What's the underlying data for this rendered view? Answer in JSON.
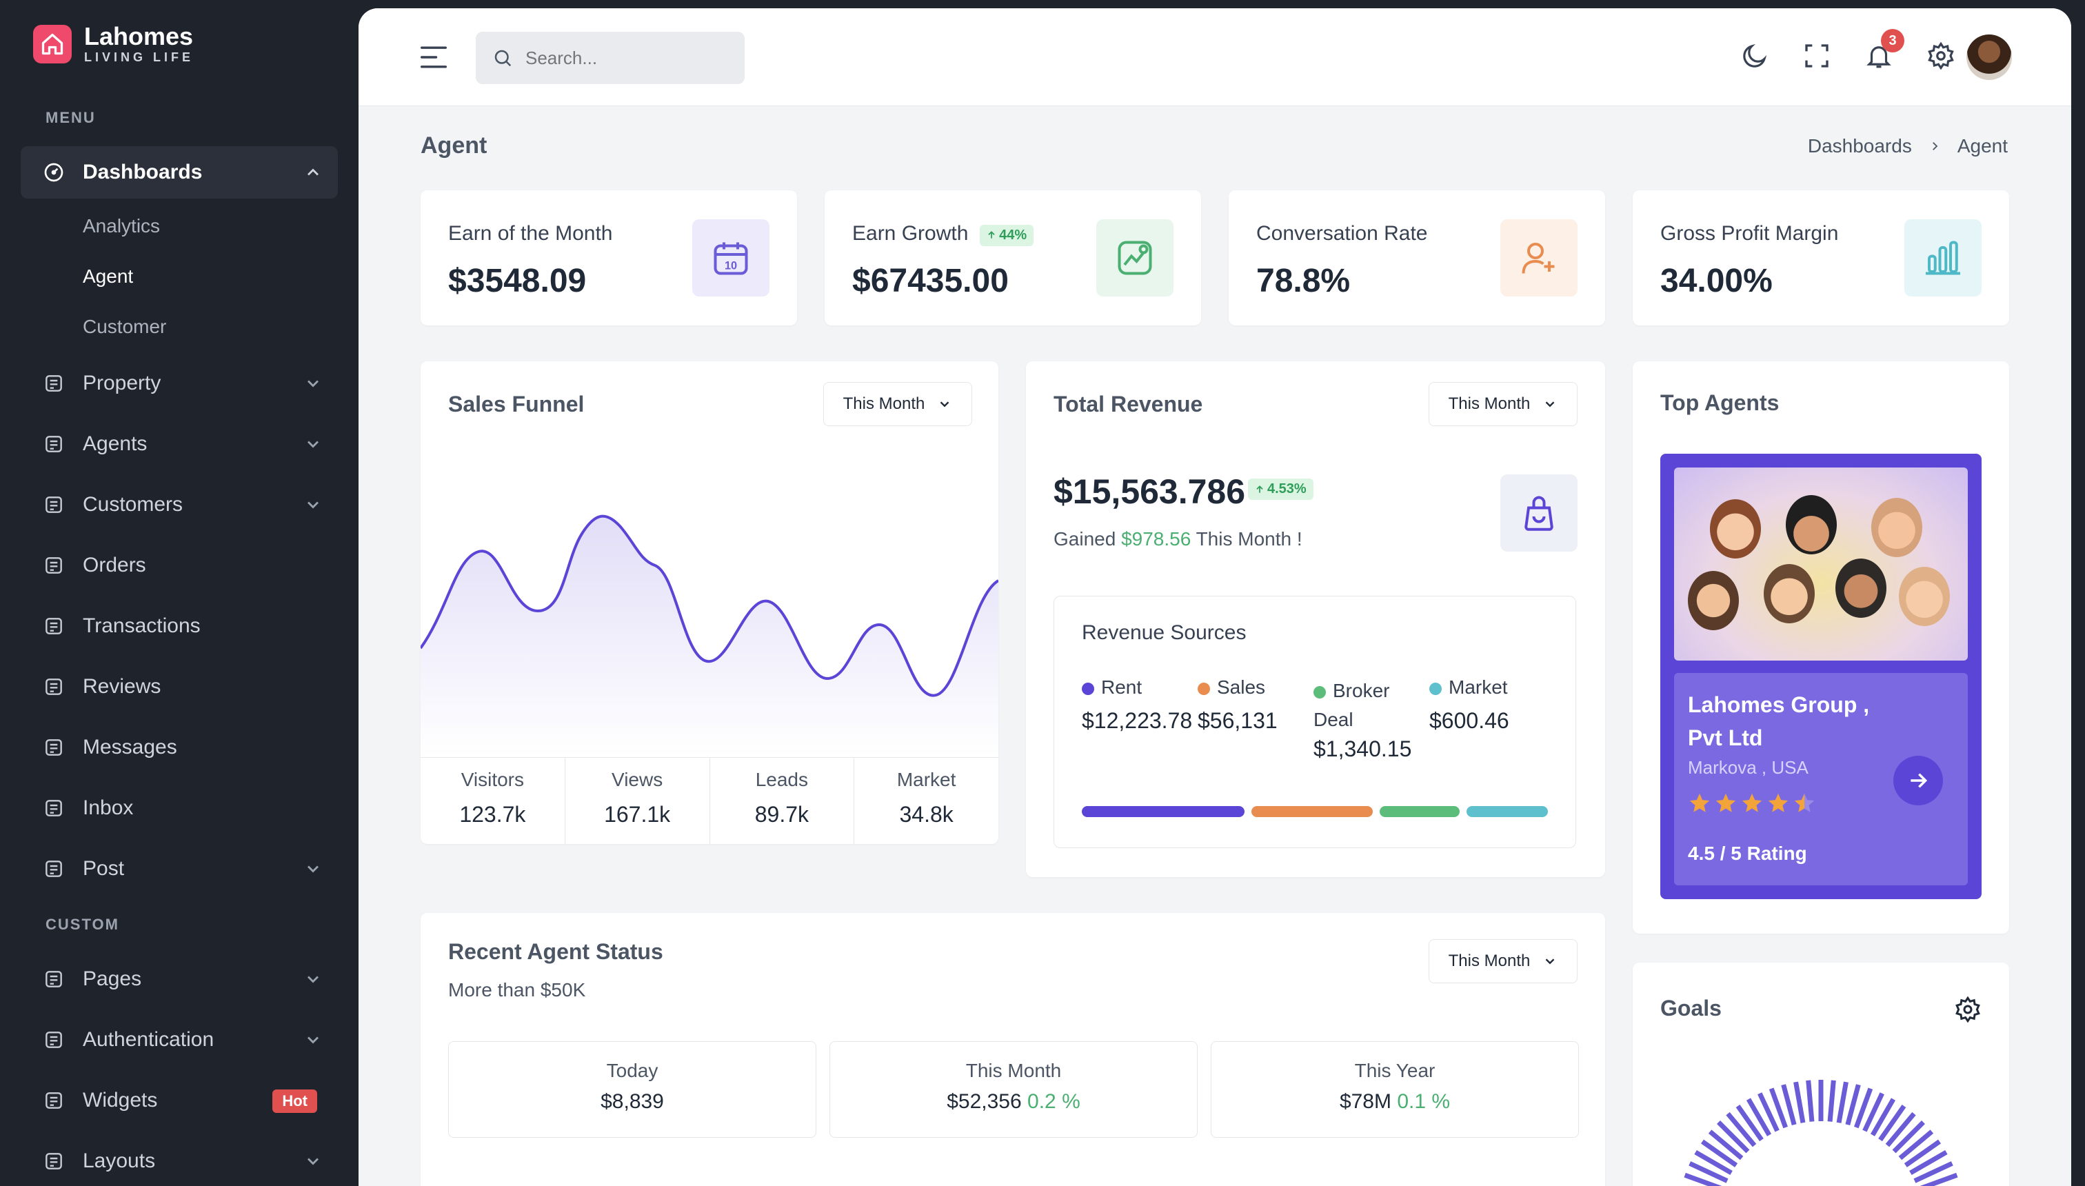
{
  "brand": {
    "name": "Lahomes",
    "tagline": "LIVING LIFE"
  },
  "sidebar": {
    "menu_heading": "MENU",
    "custom_heading": "CUSTOM",
    "dashboards_label": "Dashboards",
    "sub_items": [
      "Analytics",
      "Agent",
      "Customer"
    ],
    "items": [
      {
        "label": "Property",
        "icon": "building-icon",
        "has_children": true
      },
      {
        "label": "Agents",
        "icon": "user-icon",
        "has_children": true
      },
      {
        "label": "Customers",
        "icon": "contact-list-icon",
        "has_children": true
      },
      {
        "label": "Orders",
        "icon": "home-lock-icon",
        "has_children": false
      },
      {
        "label": "Transactions",
        "icon": "transfer-icon",
        "has_children": false
      },
      {
        "label": "Reviews",
        "icon": "review-icon",
        "has_children": false
      },
      {
        "label": "Messages",
        "icon": "messages-icon",
        "has_children": false
      },
      {
        "label": "Inbox",
        "icon": "inbox-icon",
        "has_children": false
      },
      {
        "label": "Post",
        "icon": "post-icon",
        "has_children": true
      }
    ],
    "custom_items": [
      {
        "label": "Pages",
        "icon": "pages-icon",
        "has_children": true
      },
      {
        "label": "Authentication",
        "icon": "lock-icon",
        "has_children": true
      },
      {
        "label": "Widgets",
        "icon": "shapes-icon",
        "badge": "Hot"
      },
      {
        "label": "Layouts",
        "icon": "layout-icon",
        "has_children": true
      }
    ]
  },
  "topbar": {
    "search_placeholder": "Search...",
    "notification_count": "3"
  },
  "page": {
    "title": "Agent",
    "breadcrumb": [
      "Dashboards",
      "Agent"
    ]
  },
  "stats": [
    {
      "label": "Earn of the Month",
      "value": "$3548.09",
      "icon": "calendar-icon",
      "icon_color": "#6a5bd6",
      "icon_bg": "#eceafb"
    },
    {
      "label": "Earn Growth",
      "value": "$67435.00",
      "badge": "44%",
      "icon": "chart-growth-icon",
      "icon_color": "#4caf72",
      "icon_bg": "#e8f6ee"
    },
    {
      "label": "Conversation Rate",
      "value": "78.8%",
      "icon": "user-add-icon",
      "icon_color": "#e88c4f",
      "icon_bg": "#fdf0e7"
    },
    {
      "label": "Gross Profit Margin",
      "value": "34.00%",
      "icon": "bar-chart-icon",
      "icon_color": "#4fb8c6",
      "icon_bg": "#e6f6f8"
    }
  ],
  "sales_funnel": {
    "title": "Sales Funnel",
    "period": "This Month",
    "metrics": [
      {
        "label": "Visitors",
        "value": "123.7k"
      },
      {
        "label": "Views",
        "value": "167.1k"
      },
      {
        "label": "Leads",
        "value": "89.7k"
      },
      {
        "label": "Market",
        "value": "34.8k"
      }
    ]
  },
  "total_revenue": {
    "title": "Total Revenue",
    "period": "This Month",
    "value": "$15,563.786",
    "change": "4.53%",
    "gained_prefix": "Gained",
    "gained_amount": "$978.56",
    "gained_suffix": "This Month !",
    "sources_title": "Revenue Sources",
    "sources": [
      {
        "label": "Rent",
        "value": "$12,223.78",
        "color": "#5b45d6"
      },
      {
        "label": "Sales",
        "value": "$56,131",
        "color": "#e88c4f"
      },
      {
        "label": "Broker Deal",
        "value": "$1,340.15",
        "color": "#5cbd7a"
      },
      {
        "label": "Market",
        "value": "$600.46",
        "color": "#5ec0cc"
      }
    ]
  },
  "top_agents": {
    "title": "Top Agents",
    "agent_name": "Lahomes Group , Pvt Ltd",
    "location": "Markova , USA",
    "rating_value": 4.5,
    "rating_text": "4.5 / 5 Rating"
  },
  "agent_status": {
    "title": "Recent Agent Status",
    "subtitle": "More than $50K",
    "period": "This Month",
    "boxes": [
      {
        "label": "Today",
        "value": "$8,839",
        "change": ""
      },
      {
        "label": "This Month",
        "value": "$52,356",
        "change": "0.2 %"
      },
      {
        "label": "This Year",
        "value": "$78M",
        "change": "0.1 %"
      }
    ]
  },
  "goals": {
    "title": "Goals"
  },
  "colors": {
    "accent": "#5b45d6",
    "sidebar_bg": "#1f232c",
    "positive": "#4caf72",
    "danger": "#e0504f"
  }
}
